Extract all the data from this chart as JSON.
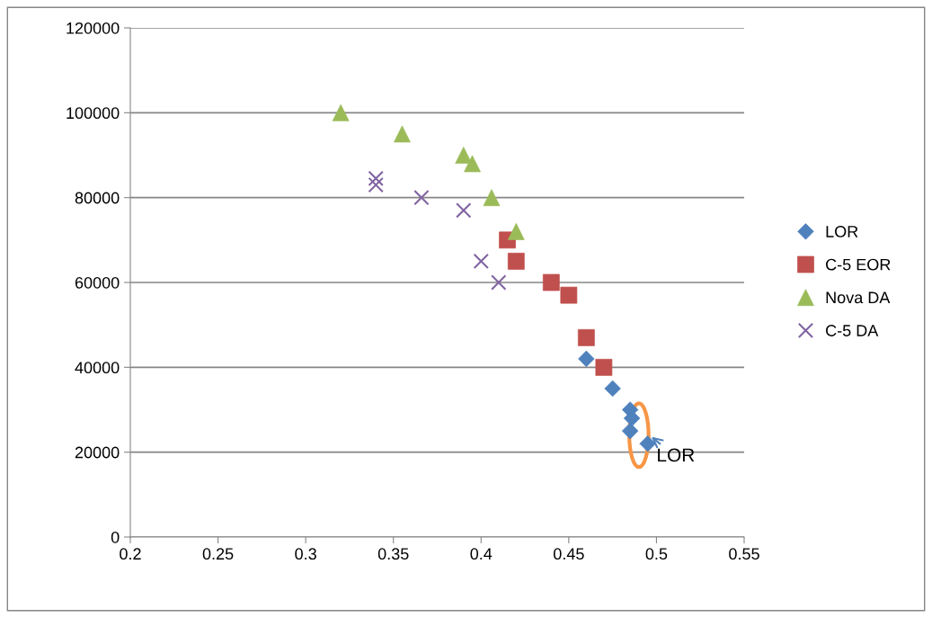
{
  "chart_data": {
    "type": "scatter",
    "xlim": [
      0.2,
      0.55
    ],
    "xticks": [
      0.2,
      0.25,
      0.3,
      0.35,
      0.4,
      0.45,
      0.5,
      0.55
    ],
    "ylim": [
      0,
      120000
    ],
    "yticks": [
      0,
      20000,
      40000,
      60000,
      80000,
      100000,
      120000
    ],
    "grid": "y",
    "legend": "right",
    "series": [
      {
        "name": "LOR",
        "color": "#4f81bd",
        "marker": "diamond",
        "x": [
          0.46,
          0.475,
          0.485,
          0.486,
          0.485,
          0.495
        ],
        "values": [
          42000,
          35000,
          30000,
          28000,
          25000,
          22000
        ]
      },
      {
        "name": "C-5 EOR",
        "color": "#c0504d",
        "marker": "square",
        "x": [
          0.415,
          0.42,
          0.44,
          0.45,
          0.46,
          0.47
        ],
        "values": [
          70000,
          65000,
          60000,
          57000,
          47000,
          40000
        ]
      },
      {
        "name": "Nova DA",
        "color": "#9bbb59",
        "marker": "triangle",
        "x": [
          0.32,
          0.355,
          0.39,
          0.395,
          0.406,
          0.42
        ],
        "values": [
          100000,
          95000,
          90000,
          88000,
          80000,
          72000
        ]
      },
      {
        "name": "C-5 DA",
        "color": "#8064a2",
        "marker": "cross",
        "x": [
          0.34,
          0.34,
          0.366,
          0.39,
          0.4,
          0.41
        ],
        "values": [
          84500,
          83000,
          80000,
          77000,
          65000,
          60000
        ]
      }
    ],
    "annotations": [
      {
        "text": "LOR",
        "x": 0.496,
        "y": 24000
      }
    ]
  }
}
